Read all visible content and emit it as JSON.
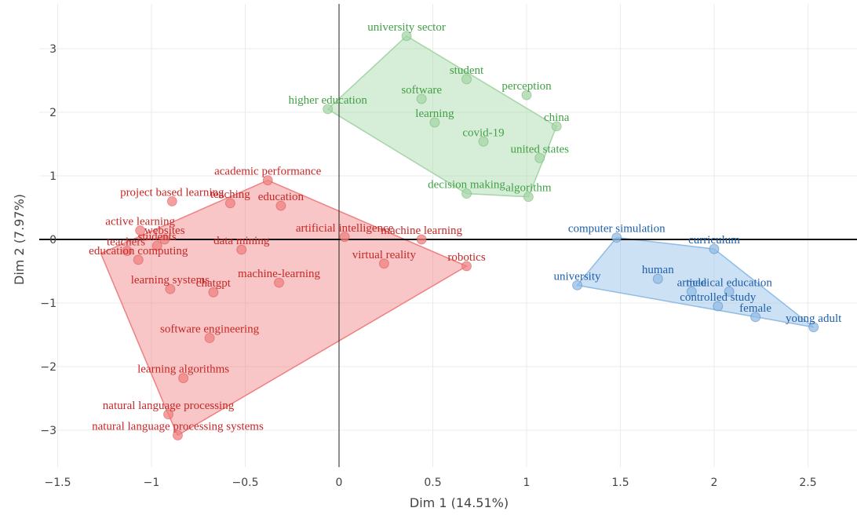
{
  "chart_data": {
    "type": "scatter",
    "xlabel": "Dim 1 (14.51%)",
    "ylabel": "Dim 2 (7.97%)",
    "xlim": [
      -1.5,
      2.75
    ],
    "ylim": [
      -3.35,
      3.6
    ],
    "x_ticks": [
      "−1.5",
      "−1",
      "−0.5",
      "0",
      "0.5",
      "1",
      "1.5",
      "2",
      "2.5"
    ],
    "y_ticks": [
      "−3",
      "−2",
      "−1",
      "0",
      "1",
      "2",
      "3"
    ],
    "grid": true,
    "legend": "none",
    "clusters": [
      {
        "color": "#c62828",
        "fill": "#f08080",
        "hull": [
          [
            -1.27,
            -0.22
          ],
          [
            -0.38,
            0.93
          ],
          [
            0.68,
            -0.42
          ],
          [
            -0.86,
            -3.08
          ],
          [
            -0.91,
            -2.75
          ]
        ],
        "points": [
          {
            "label": "academic performance",
            "x": -0.38,
            "y": 0.93
          },
          {
            "label": "project based learning",
            "x": -0.89,
            "y": 0.6
          },
          {
            "label": "teaching",
            "x": -0.58,
            "y": 0.57
          },
          {
            "label": "education",
            "x": -0.31,
            "y": 0.53
          },
          {
            "label": "active learning",
            "x": -1.06,
            "y": 0.14
          },
          {
            "label": "websites",
            "x": -0.93,
            "y": 0.0
          },
          {
            "label": "students",
            "x": -0.97,
            "y": -0.1
          },
          {
            "label": "teachers'",
            "x": -1.13,
            "y": -0.18
          },
          {
            "label": "education computing",
            "x": -1.07,
            "y": -0.32
          },
          {
            "label": "data mining",
            "x": -0.52,
            "y": -0.16
          },
          {
            "label": "artificial intelligence",
            "x": 0.03,
            "y": 0.04
          },
          {
            "label": "machine learning",
            "x": 0.44,
            "y": 0.0
          },
          {
            "label": "virtual reality",
            "x": 0.24,
            "y": -0.38
          },
          {
            "label": "robotics",
            "x": 0.68,
            "y": -0.42
          },
          {
            "label": "learning systems",
            "x": -0.9,
            "y": -0.78
          },
          {
            "label": "chatgpt",
            "x": -0.67,
            "y": -0.83
          },
          {
            "label": "machine-learning",
            "x": -0.32,
            "y": -0.68
          },
          {
            "label": "software engineering",
            "x": -0.69,
            "y": -1.55
          },
          {
            "label": "learning algorithms",
            "x": -0.83,
            "y": -2.18
          },
          {
            "label": "natural language processing",
            "x": -0.91,
            "y": -2.75
          },
          {
            "label": "natural language processing systems",
            "x": -0.86,
            "y": -3.08
          }
        ]
      },
      {
        "color": "#43a047",
        "fill": "#a5d6a7",
        "hull": [
          [
            -0.06,
            2.05
          ],
          [
            0.36,
            3.2
          ],
          [
            1.16,
            1.78
          ],
          [
            1.01,
            0.67
          ],
          [
            0.68,
            0.72
          ]
        ],
        "points": [
          {
            "label": "university sector",
            "x": 0.36,
            "y": 3.2
          },
          {
            "label": "student",
            "x": 0.68,
            "y": 2.52
          },
          {
            "label": "perception",
            "x": 1.0,
            "y": 2.27
          },
          {
            "label": "higher education",
            "x": -0.06,
            "y": 2.05
          },
          {
            "label": "software",
            "x": 0.44,
            "y": 2.21
          },
          {
            "label": "china",
            "x": 1.16,
            "y": 1.78
          },
          {
            "label": "learning",
            "x": 0.51,
            "y": 1.84
          },
          {
            "label": "covid-19",
            "x": 0.77,
            "y": 1.54
          },
          {
            "label": "united states",
            "x": 1.07,
            "y": 1.28
          },
          {
            "label": "decision making",
            "x": 0.68,
            "y": 0.72
          },
          {
            "label": "algorithm",
            "x": 1.01,
            "y": 0.67
          }
        ]
      },
      {
        "color": "#1f5fa8",
        "fill": "#90bce6",
        "hull": [
          [
            1.27,
            -0.72
          ],
          [
            1.48,
            0.03
          ],
          [
            2.0,
            -0.15
          ],
          [
            2.53,
            -1.38
          ]
        ],
        "points": [
          {
            "label": "computer simulation",
            "x": 1.48,
            "y": 0.03
          },
          {
            "label": "curriculum",
            "x": 2.0,
            "y": -0.15
          },
          {
            "label": "university",
            "x": 1.27,
            "y": -0.72
          },
          {
            "label": "human",
            "x": 1.7,
            "y": -0.62
          },
          {
            "label": "article",
            "x": 1.88,
            "y": -0.82
          },
          {
            "label": "medical education",
            "x": 2.08,
            "y": -0.82
          },
          {
            "label": "controlled study",
            "x": 2.02,
            "y": -1.05
          },
          {
            "label": "female",
            "x": 2.22,
            "y": -1.22
          },
          {
            "label": "young adult",
            "x": 2.53,
            "y": -1.38
          }
        ]
      }
    ]
  }
}
